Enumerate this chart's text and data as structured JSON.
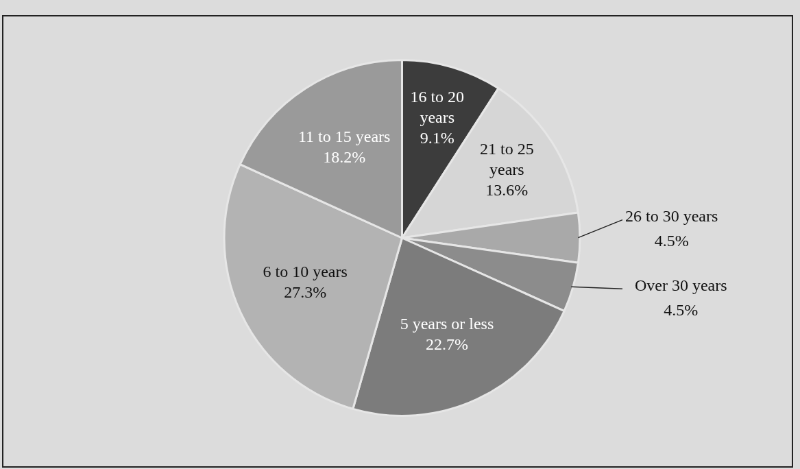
{
  "chart_data": {
    "type": "pie",
    "categories": [
      "16 to 20 years",
      "21 to 25 years",
      "26 to 30 years",
      "Over 30 years",
      "5 years or less",
      "6 to 10 years",
      "11 to 15 years"
    ],
    "values": [
      9.1,
      13.6,
      4.5,
      4.5,
      22.7,
      27.3,
      18.2
    ],
    "colors": [
      "#3c3c3c",
      "#d6d6d6",
      "#a9a9a9",
      "#8c8c8c",
      "#7c7c7c",
      "#b3b3b3",
      "#9a9a9a"
    ],
    "value_labels": [
      "9.1%",
      "13.6%",
      "4.5%",
      "4.5%",
      "22.7%",
      "27.3%",
      "18.2%"
    ],
    "legend": false
  }
}
